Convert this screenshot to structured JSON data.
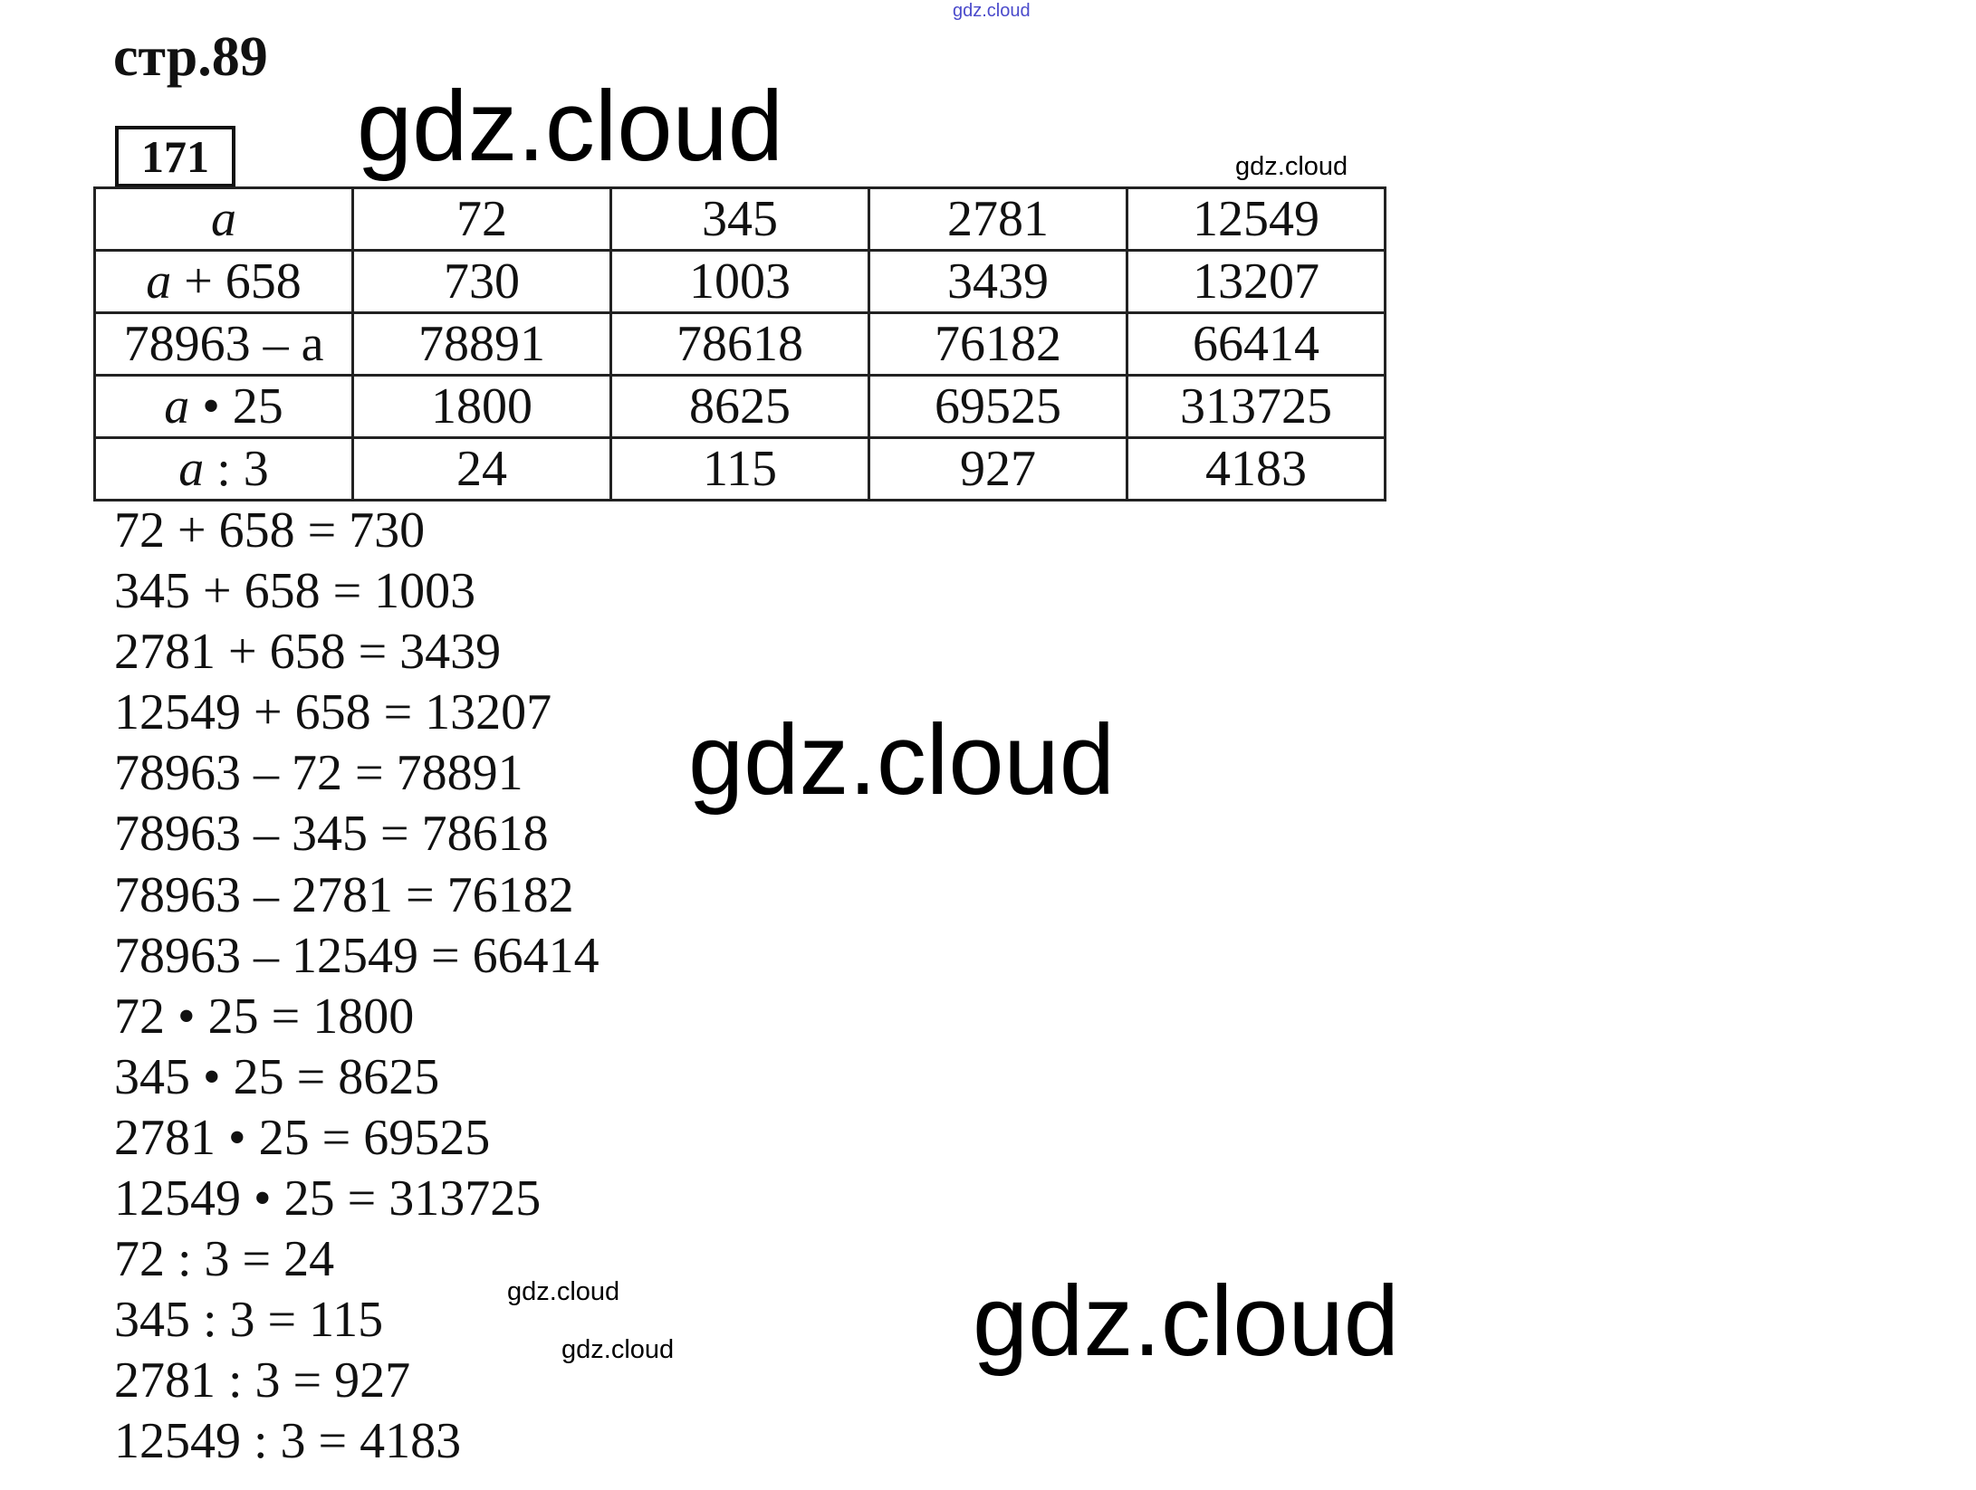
{
  "page_title": "стр.89",
  "task_number": "171",
  "watermark": "gdz.cloud",
  "table": {
    "rows": [
      {
        "label": "a",
        "values": [
          "72",
          "345",
          "2781",
          "12549"
        ]
      },
      {
        "label": "a + 658",
        "values": [
          "730",
          "1003",
          "3439",
          "13207"
        ]
      },
      {
        "label": "78963 – a",
        "values": [
          "78891",
          "78618",
          "76182",
          "66414"
        ]
      },
      {
        "label": "a • 25",
        "values": [
          "1800",
          "8625",
          "69525",
          "313725"
        ]
      },
      {
        "label": "a : 3",
        "values": [
          "24",
          "115",
          "927",
          "4183"
        ]
      }
    ]
  },
  "equations": [
    "72 + 658 = 730",
    "345 + 658 = 1003",
    "2781 + 658 = 3439",
    "12549 + 658 = 13207",
    "78963 – 72 = 78891",
    "78963 – 345 = 78618",
    "78963 – 2781 = 76182",
    "78963 – 12549 = 66414",
    "72 • 25 = 1800",
    "345 • 25 = 8625",
    "2781 • 25 = 69525",
    "12549 • 25 = 313725",
    "72 : 3 = 24",
    "345 : 3 = 115",
    "2781 : 3 = 927",
    "12549 : 3 = 4183"
  ],
  "colors": {
    "top_watermark": "#4a4acb",
    "text": "#111111"
  }
}
